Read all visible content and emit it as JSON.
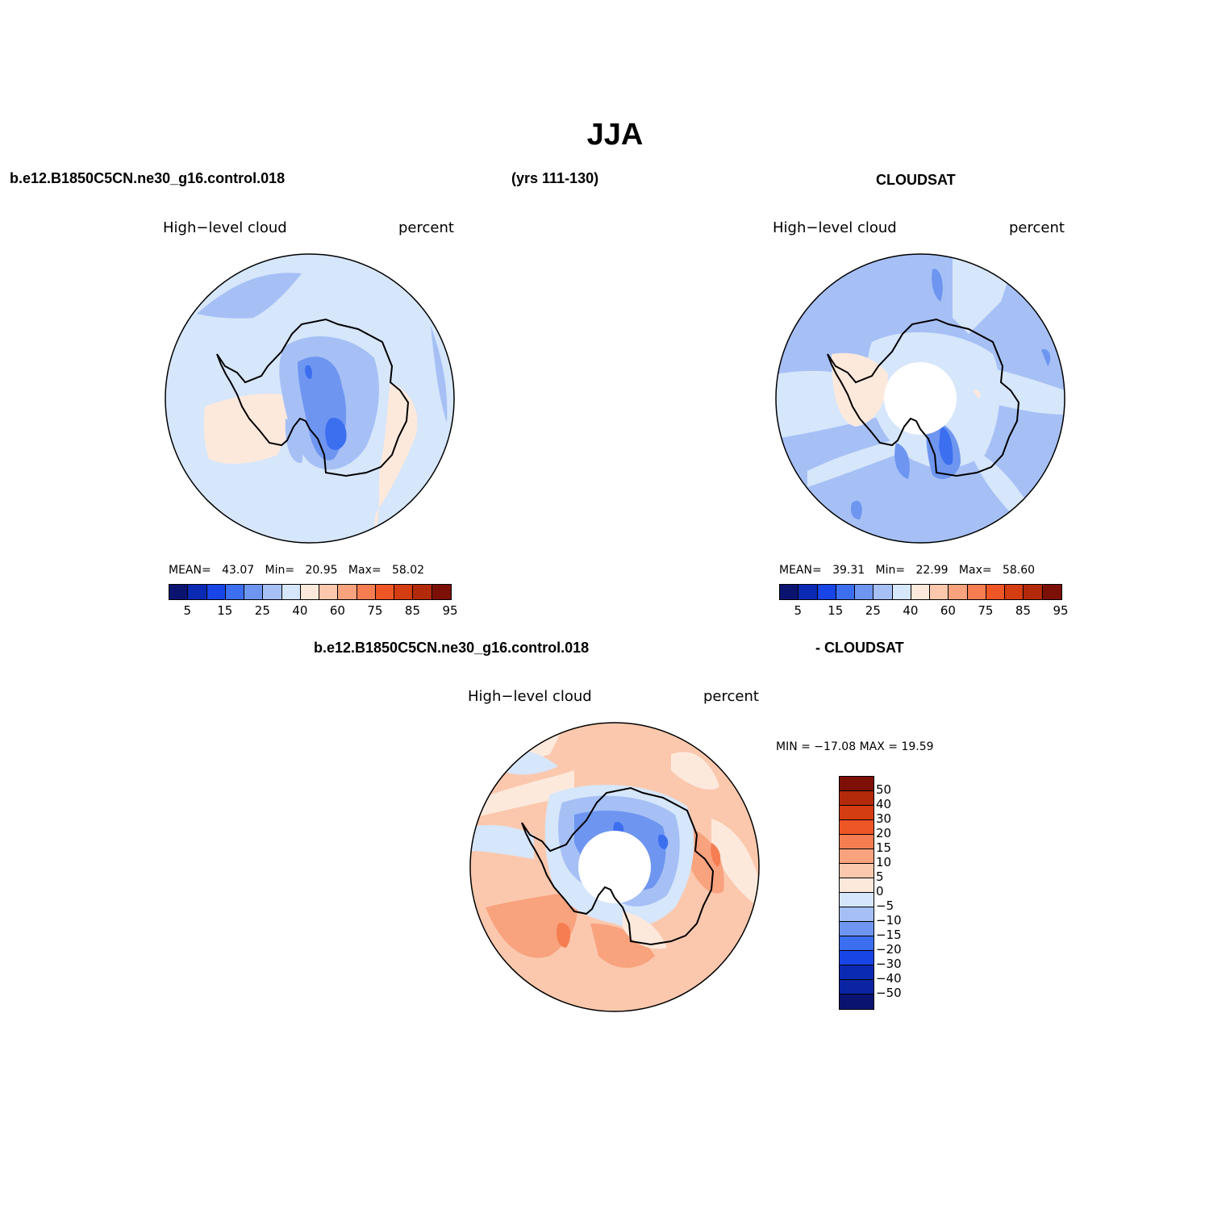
{
  "title": "JJA",
  "header": {
    "case_name": "b.e12.B1850C5CN.ne30_g16.control.018",
    "years": "(yrs 111-130)",
    "obs_name": "CLOUDSAT",
    "diff_case": "b.e12.B1850C5CN.ne30_g16.control.018",
    "diff_obs": "- CLOUDSAT"
  },
  "panels": [
    {
      "id": "model",
      "variable": "High−level cloud",
      "units": "percent",
      "stats": {
        "mean_label": "MEAN=",
        "mean": "43.07",
        "min_label": "Min=",
        "min": "20.95",
        "max_label": "Max=",
        "max": "58.02"
      },
      "has_hole": false
    },
    {
      "id": "obs",
      "variable": "High−level cloud",
      "units": "percent",
      "stats": {
        "mean_label": "MEAN=",
        "mean": "39.31",
        "min_label": "Min=",
        "min": "22.99",
        "max_label": "Max=",
        "max": "58.60"
      },
      "has_hole": true
    },
    {
      "id": "diff",
      "variable": "High−level cloud",
      "units": "percent",
      "stats_line": "MIN = −17.08 MAX =   19.59",
      "has_hole": true
    }
  ],
  "colorbar_abs": {
    "colors": [
      "#0a1470",
      "#0a2ab4",
      "#1845e6",
      "#3c6ef0",
      "#6e96f0",
      "#a6c0f6",
      "#d6e6fb",
      "#fde9dc",
      "#fbc8ad",
      "#f8a27e",
      "#f57d51",
      "#ee5626",
      "#d43c12",
      "#b22a0a",
      "#7c1006"
    ],
    "tick_labels": [
      "5",
      "15",
      "25",
      "40",
      "60",
      "75",
      "85",
      "95"
    ]
  },
  "colorbar_diff": {
    "colors": [
      "#7c1006",
      "#b22a0a",
      "#d43c12",
      "#ee5626",
      "#f57d51",
      "#f8a27e",
      "#fbc8ad",
      "#fde9dc",
      "#d6e6fb",
      "#a6c0f6",
      "#6e96f0",
      "#3c6ef0",
      "#1845e6",
      "#0a2ab4",
      "#0a24a4",
      "#0a1470"
    ],
    "tick_labels": [
      "50",
      "40",
      "30",
      "20",
      "15",
      "10",
      "5",
      "0",
      "−5",
      "−10",
      "−15",
      "−20",
      "−30",
      "−40",
      "−50"
    ]
  }
}
